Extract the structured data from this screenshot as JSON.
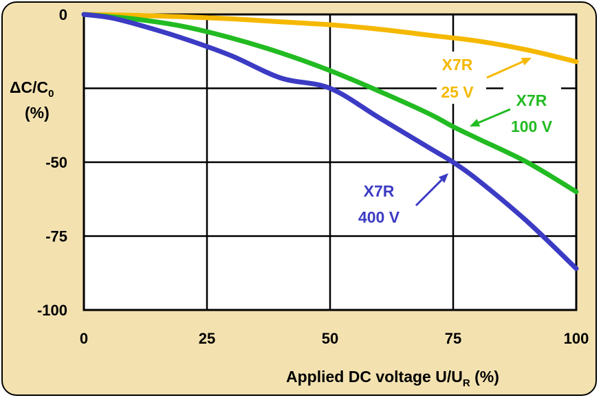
{
  "chart_data": {
    "type": "line",
    "title": "",
    "xlabel": "Applied DC voltage U/U",
    "xlabel_sub": "R",
    "xlabel_suffix": " (%)",
    "ylabel_line1_prefix": "ΔC/C",
    "ylabel_line1_sub": "0",
    "ylabel_line2": "(%)",
    "xlim": [
      0,
      100
    ],
    "ylim": [
      -100,
      0
    ],
    "x_ticks": [
      0,
      25,
      50,
      75,
      100
    ],
    "x_tick_labels": [
      "0",
      "25",
      "50",
      "75",
      "100"
    ],
    "y_ticks": [
      0,
      -25,
      -50,
      -75,
      -100
    ],
    "y_tick_labels": [
      "0",
      "",
      "-50",
      "-75",
      "-100"
    ],
    "grid": true,
    "series": [
      {
        "name": "X7R 25 V",
        "label_line1": "X7R",
        "label_line2": "25 V",
        "color": "#f5b800",
        "x": [
          0,
          10,
          20,
          30,
          40,
          50,
          60,
          70,
          80,
          90,
          100
        ],
        "y": [
          0,
          -0.3,
          -0.8,
          -1.5,
          -2.5,
          -3.5,
          -5,
          -7,
          -9,
          -12,
          -16
        ]
      },
      {
        "name": "X7R 100 V",
        "label_line1": "X7R",
        "label_line2": "100 V",
        "color": "#22bb22",
        "x": [
          0,
          10,
          20,
          30,
          40,
          50,
          60,
          70,
          75,
          80,
          90,
          100
        ],
        "y": [
          0,
          -1.5,
          -4,
          -8,
          -13,
          -19,
          -26,
          -33.5,
          -38,
          -42,
          -50,
          -60
        ]
      },
      {
        "name": "X7R 400 V",
        "label_line1": "X7R",
        "label_line2": "400 V",
        "color": "#3b3bc4",
        "x": [
          0,
          5,
          10,
          20,
          30,
          40,
          50,
          60,
          70,
          75,
          80,
          90,
          100
        ],
        "y": [
          0,
          -1,
          -3,
          -8,
          -14,
          -21.5,
          -25,
          -35,
          -45,
          -50,
          -56,
          -70,
          -86
        ]
      }
    ]
  }
}
